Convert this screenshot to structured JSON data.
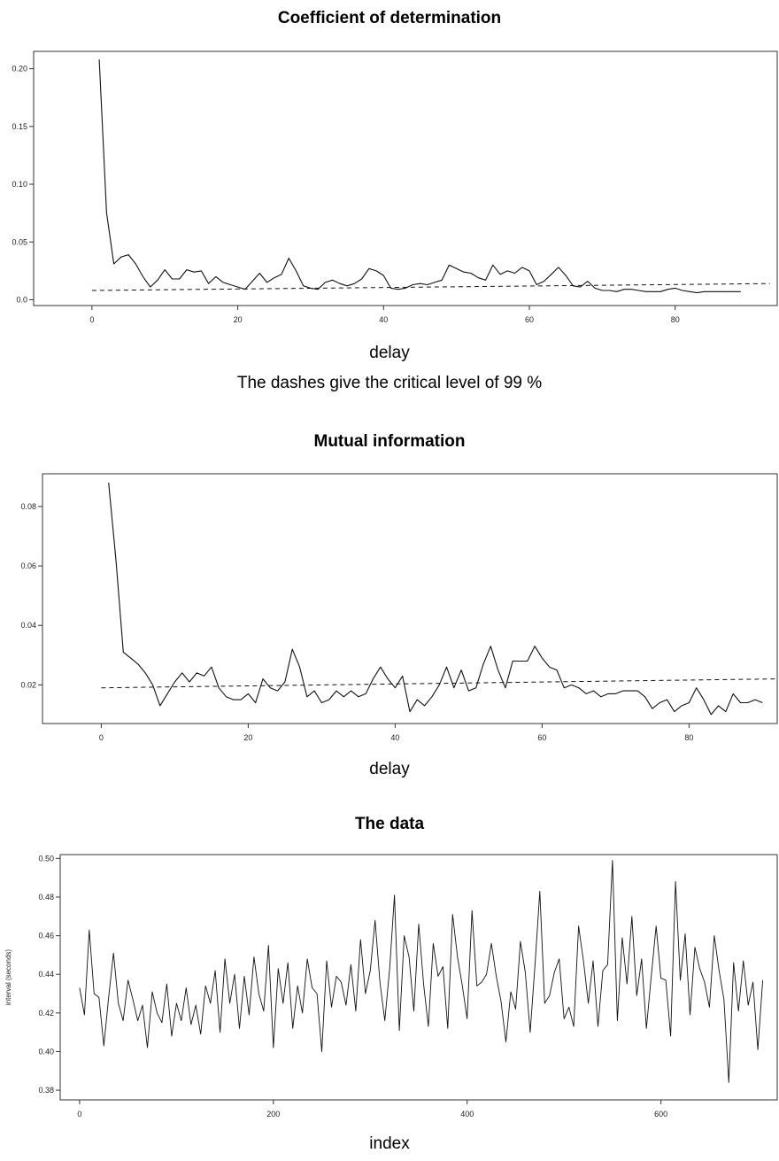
{
  "chart_data": [
    {
      "type": "line",
      "title": "Coefficient of determination",
      "xlabel": "delay",
      "caption": "The dashes give the critical level of 99 %",
      "ylabel": "",
      "xlim": [
        -8,
        94
      ],
      "ylim": [
        -0.005,
        0.215
      ],
      "xticks": [
        0,
        20,
        40,
        60,
        80
      ],
      "yticks": [
        0.0,
        0.05,
        0.1,
        0.15,
        0.2
      ],
      "ytick_labels": [
        "0.0",
        "0.05",
        "0.10",
        "0.15",
        "0.20"
      ],
      "series": [
        {
          "style": "solid",
          "x": [
            1,
            2,
            3,
            4,
            5,
            6,
            7,
            8,
            9,
            10,
            11,
            12,
            13,
            14,
            15,
            16,
            17,
            18,
            19,
            20,
            21,
            22,
            23,
            24,
            25,
            26,
            27,
            28,
            29,
            30,
            31,
            32,
            33,
            34,
            35,
            36,
            37,
            38,
            39,
            40,
            41,
            42,
            43,
            44,
            45,
            46,
            47,
            48,
            49,
            50,
            51,
            52,
            53,
            54,
            55,
            56,
            57,
            58,
            59,
            60,
            61,
            62,
            63,
            64,
            65,
            66,
            67,
            68,
            69,
            70,
            71,
            72,
            73,
            74,
            75,
            76,
            77,
            78,
            79,
            80,
            81,
            82,
            83,
            84,
            85,
            86,
            87,
            88,
            89
          ],
          "y": [
            0.208,
            0.075,
            0.031,
            0.037,
            0.039,
            0.031,
            0.02,
            0.011,
            0.017,
            0.026,
            0.018,
            0.018,
            0.026,
            0.024,
            0.025,
            0.014,
            0.02,
            0.015,
            0.013,
            0.011,
            0.009,
            0.016,
            0.023,
            0.015,
            0.019,
            0.022,
            0.036,
            0.025,
            0.012,
            0.01,
            0.009,
            0.015,
            0.017,
            0.014,
            0.012,
            0.014,
            0.018,
            0.027,
            0.025,
            0.021,
            0.01,
            0.009,
            0.01,
            0.013,
            0.014,
            0.013,
            0.015,
            0.017,
            0.03,
            0.027,
            0.024,
            0.023,
            0.019,
            0.017,
            0.03,
            0.022,
            0.025,
            0.023,
            0.028,
            0.025,
            0.013,
            0.016,
            0.022,
            0.028,
            0.021,
            0.012,
            0.011,
            0.016,
            0.01,
            0.008,
            0.008,
            0.007,
            0.009,
            0.009,
            0.008,
            0.007,
            0.007,
            0.007,
            0.009,
            0.01,
            0.008,
            0.007,
            0.006,
            0.007,
            0.007,
            0.007,
            0.007,
            0.007,
            0.007
          ]
        },
        {
          "style": "dashed",
          "x": [
            0,
            93
          ],
          "y": [
            0.008,
            0.014
          ]
        }
      ]
    },
    {
      "type": "line",
      "title": "Mutual information",
      "xlabel": "delay",
      "ylabel": "",
      "xlim": [
        -8,
        92
      ],
      "ylim": [
        0.007,
        0.091
      ],
      "xticks": [
        0,
        20,
        40,
        60,
        80
      ],
      "yticks": [
        0.02,
        0.04,
        0.06,
        0.08
      ],
      "ytick_labels": [
        "0.02",
        "0.04",
        "0.06",
        "0.08"
      ],
      "series": [
        {
          "style": "solid",
          "x": [
            1,
            2,
            3,
            4,
            5,
            6,
            7,
            8,
            9,
            10,
            11,
            12,
            13,
            14,
            15,
            16,
            17,
            18,
            19,
            20,
            21,
            22,
            23,
            24,
            25,
            26,
            27,
            28,
            29,
            30,
            31,
            32,
            33,
            34,
            35,
            36,
            37,
            38,
            39,
            40,
            41,
            42,
            43,
            44,
            45,
            46,
            47,
            48,
            49,
            50,
            51,
            52,
            53,
            54,
            55,
            56,
            57,
            58,
            59,
            60,
            61,
            62,
            63,
            64,
            65,
            66,
            67,
            68,
            69,
            70,
            71,
            72,
            73,
            74,
            75,
            76,
            77,
            78,
            79,
            80,
            81,
            82,
            83,
            84,
            85,
            86,
            87,
            88,
            89,
            90
          ],
          "y": [
            0.088,
            0.062,
            0.031,
            0.029,
            0.027,
            0.024,
            0.02,
            0.013,
            0.017,
            0.021,
            0.024,
            0.021,
            0.024,
            0.023,
            0.026,
            0.019,
            0.016,
            0.015,
            0.015,
            0.017,
            0.014,
            0.022,
            0.019,
            0.018,
            0.021,
            0.032,
            0.026,
            0.016,
            0.018,
            0.014,
            0.015,
            0.018,
            0.016,
            0.018,
            0.016,
            0.017,
            0.022,
            0.026,
            0.022,
            0.019,
            0.023,
            0.011,
            0.015,
            0.013,
            0.016,
            0.02,
            0.026,
            0.019,
            0.025,
            0.018,
            0.019,
            0.027,
            0.033,
            0.025,
            0.019,
            0.028,
            0.028,
            0.028,
            0.033,
            0.029,
            0.026,
            0.025,
            0.019,
            0.02,
            0.019,
            0.017,
            0.018,
            0.016,
            0.017,
            0.017,
            0.018,
            0.018,
            0.018,
            0.016,
            0.012,
            0.014,
            0.015,
            0.011,
            0.013,
            0.014,
            0.019,
            0.015,
            0.01,
            0.013,
            0.011,
            0.017,
            0.014,
            0.014,
            0.015,
            0.014
          ]
        },
        {
          "style": "dashed",
          "x": [
            0,
            92
          ],
          "y": [
            0.019,
            0.022
          ]
        }
      ]
    },
    {
      "type": "line",
      "title": "The data",
      "xlabel": "index",
      "ylabel": "interval (seconds)",
      "xlim": [
        -20,
        720
      ],
      "ylim": [
        0.375,
        0.502
      ],
      "xticks": [
        0,
        200,
        400,
        600
      ],
      "yticks": [
        0.38,
        0.4,
        0.42,
        0.44,
        0.46,
        0.48,
        0.5
      ],
      "ytick_labels": [
        "0.38",
        "0.40",
        "0.42",
        "0.44",
        "0.46",
        "0.48",
        "0.50"
      ],
      "series": [
        {
          "style": "solid",
          "x": [
            0,
            5,
            10,
            15,
            20,
            25,
            30,
            35,
            40,
            45,
            50,
            55,
            60,
            65,
            70,
            75,
            80,
            85,
            90,
            95,
            100,
            105,
            110,
            115,
            120,
            125,
            130,
            135,
            140,
            145,
            150,
            155,
            160,
            165,
            170,
            175,
            180,
            185,
            190,
            195,
            200,
            205,
            210,
            215,
            220,
            225,
            230,
            235,
            240,
            245,
            250,
            255,
            260,
            265,
            270,
            275,
            280,
            285,
            290,
            295,
            300,
            305,
            310,
            315,
            320,
            325,
            330,
            335,
            340,
            345,
            350,
            355,
            360,
            365,
            370,
            375,
            380,
            385,
            390,
            395,
            400,
            405,
            410,
            415,
            420,
            425,
            430,
            435,
            440,
            445,
            450,
            455,
            460,
            465,
            470,
            475,
            480,
            485,
            490,
            495,
            500,
            505,
            510,
            515,
            520,
            525,
            530,
            535,
            540,
            545,
            550,
            555,
            560,
            565,
            570,
            575,
            580,
            585,
            590,
            595,
            600,
            605,
            610,
            615,
            620,
            625,
            630,
            635,
            640,
            645,
            650,
            655,
            660,
            665,
            670,
            675,
            680,
            685,
            690,
            695,
            700,
            705
          ],
          "y": [
            0.433,
            0.419,
            0.463,
            0.43,
            0.428,
            0.403,
            0.428,
            0.451,
            0.425,
            0.416,
            0.437,
            0.427,
            0.416,
            0.424,
            0.402,
            0.431,
            0.42,
            0.415,
            0.435,
            0.408,
            0.425,
            0.416,
            0.433,
            0.414,
            0.424,
            0.409,
            0.434,
            0.425,
            0.442,
            0.41,
            0.448,
            0.425,
            0.44,
            0.412,
            0.439,
            0.419,
            0.449,
            0.43,
            0.421,
            0.455,
            0.402,
            0.443,
            0.425,
            0.446,
            0.412,
            0.434,
            0.42,
            0.448,
            0.433,
            0.43,
            0.4,
            0.447,
            0.423,
            0.439,
            0.436,
            0.424,
            0.445,
            0.421,
            0.458,
            0.43,
            0.442,
            0.468,
            0.436,
            0.416,
            0.443,
            0.481,
            0.411,
            0.46,
            0.449,
            0.421,
            0.466,
            0.435,
            0.413,
            0.456,
            0.439,
            0.444,
            0.412,
            0.471,
            0.449,
            0.434,
            0.417,
            0.473,
            0.434,
            0.436,
            0.44,
            0.456,
            0.439,
            0.426,
            0.405,
            0.431,
            0.422,
            0.457,
            0.441,
            0.41,
            0.445,
            0.483,
            0.425,
            0.429,
            0.441,
            0.448,
            0.417,
            0.423,
            0.413,
            0.465,
            0.447,
            0.425,
            0.447,
            0.413,
            0.442,
            0.445,
            0.499,
            0.416,
            0.459,
            0.435,
            0.47,
            0.429,
            0.448,
            0.412,
            0.439,
            0.465,
            0.438,
            0.437,
            0.408,
            0.488,
            0.437,
            0.461,
            0.419,
            0.454,
            0.443,
            0.436,
            0.423,
            0.46,
            0.442,
            0.427,
            0.384,
            0.446,
            0.421,
            0.447,
            0.424,
            0.436,
            0.401,
            0.437
          ]
        }
      ]
    }
  ]
}
